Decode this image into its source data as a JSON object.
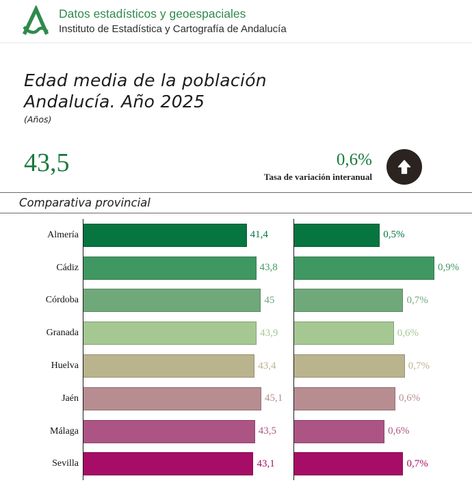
{
  "header": {
    "logo": "junta-de-andalucia-logo",
    "title": "Datos estadísticos y geoespaciales",
    "subtitle": "Instituto de Estadística y Cartografía de Andalucía"
  },
  "indicator": {
    "title_line1": "Edad media de la población",
    "title_line2": "Andalucía. Año 2025",
    "unit": "(Años)",
    "value": "43,5",
    "variation": {
      "value": "0,6%",
      "label": "Tasa de variación interanual",
      "trend": "up"
    }
  },
  "section": {
    "title": "Comparativa provincial"
  },
  "colors": {
    "header_green": "#2f8a4c",
    "value_green": "#1b7a3e",
    "trend_circle": "#2b2320",
    "separator": "#6b6b6b",
    "provinces": [
      "#06753f",
      "#3f9862",
      "#70a979",
      "#a5c893",
      "#bab48e",
      "#b78d91",
      "#ac5584",
      "#a60d66"
    ]
  },
  "chart_data": [
    {
      "type": "bar",
      "orientation": "horizontal",
      "title": "Edad media de la población por provincia",
      "unit": "Años",
      "categories": [
        "Almería",
        "Cádiz",
        "Córdoba",
        "Granada",
        "Huelva",
        "Jaén",
        "Málaga",
        "Sevilla"
      ],
      "values": [
        41.4,
        43.8,
        45.0,
        43.9,
        43.4,
        45.1,
        43.5,
        43.1
      ],
      "value_labels": [
        "41,4",
        "43,8",
        "45",
        "43,9",
        "43,4",
        "45,1",
        "43,5",
        "43,1"
      ],
      "xlim": [
        0,
        45.1
      ],
      "grid": false,
      "legend": false
    },
    {
      "type": "bar",
      "orientation": "horizontal",
      "title": "Tasa de variación interanual por provincia",
      "unit": "%",
      "categories": [
        "Almería",
        "Cádiz",
        "Córdoba",
        "Granada",
        "Huelva",
        "Jaén",
        "Málaga",
        "Sevilla"
      ],
      "values": [
        0.55,
        0.9,
        0.7,
        0.64,
        0.71,
        0.65,
        0.58,
        0.7
      ],
      "value_labels": [
        "0,5%",
        "0,9%",
        "0,7%",
        "0,6%",
        "0,7%",
        "0,6%",
        "0,6%",
        "0,7%"
      ],
      "xlim": [
        0,
        0.9
      ],
      "grid": false,
      "legend": false
    }
  ]
}
